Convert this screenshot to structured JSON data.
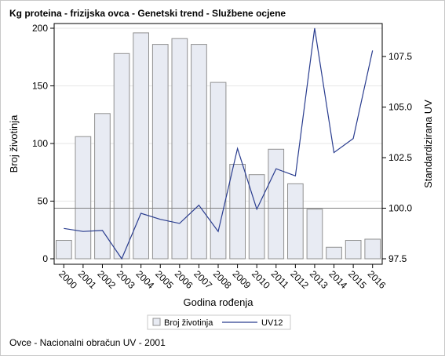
{
  "title": "Kg proteina - frizijska ovca - Genetski trend - Službene ocjene",
  "footnote": "Ovce - Nacionalni obračun UV - 2001",
  "colors": {
    "bar_fill": "#e8ebf3",
    "bar_stroke": "#909090",
    "line": "#2a3d8f",
    "grid": "#e6e6e6",
    "reference_line": "#808080"
  },
  "chart_data": {
    "type": "bar",
    "xlabel": "Godina rođenja",
    "ylabel": "Broj životinja",
    "y2label": "Standardizirana UV",
    "categories": [
      "2000",
      "2001",
      "2002",
      "2003",
      "2004",
      "2005",
      "2006",
      "2007",
      "2008",
      "2009",
      "2010",
      "2011",
      "2012",
      "2013",
      "2014",
      "2015",
      "2016"
    ],
    "ylim": [
      0,
      200
    ],
    "yticks": [
      0,
      50,
      100,
      150,
      200
    ],
    "y2lim": [
      97.5,
      108.9
    ],
    "y2ticks": [
      "97.5",
      "100.0",
      "102.5",
      "105.0",
      "107.5"
    ],
    "reference_y2": 100.0,
    "grid": true,
    "legend_position": "bottom",
    "series": [
      {
        "name": "Broj životinja",
        "type": "bar",
        "axis": "left",
        "values": [
          16,
          106,
          126,
          178,
          196,
          186,
          191,
          186,
          153,
          82,
          73,
          95,
          65,
          43,
          10,
          16,
          17
        ]
      },
      {
        "name": "UV12",
        "type": "line",
        "axis": "right",
        "values": [
          99.0,
          98.85,
          98.9,
          97.5,
          99.75,
          99.45,
          99.25,
          100.15,
          98.85,
          102.95,
          99.95,
          101.95,
          101.6,
          108.9,
          102.75,
          103.45,
          107.8
        ]
      }
    ]
  }
}
